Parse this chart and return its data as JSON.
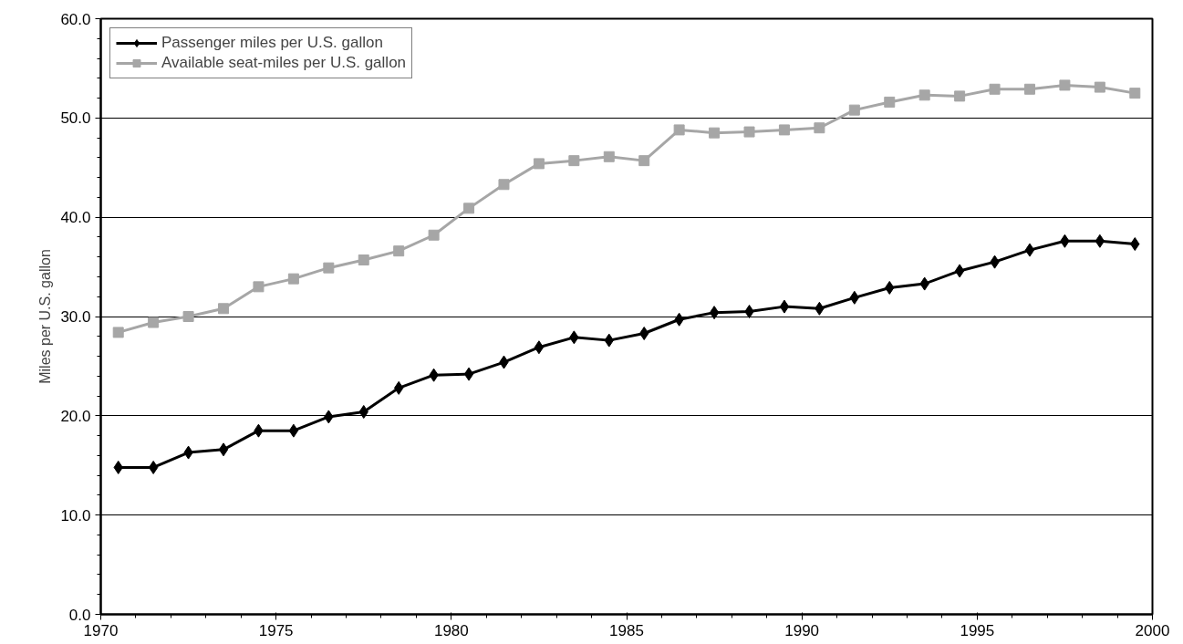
{
  "chart_data": {
    "type": "line",
    "ylabel": "Miles per U.S. gallon",
    "xlim": [
      1970,
      2000
    ],
    "xticks": [
      1970,
      1975,
      1980,
      1985,
      1990,
      1995,
      2000
    ],
    "ylim": [
      0,
      60
    ],
    "yticks": [
      {
        "value": 0,
        "label": "0.0"
      },
      {
        "value": 10,
        "label": "10.0"
      },
      {
        "value": 20,
        "label": "20.0"
      },
      {
        "value": 30,
        "label": "30.0"
      },
      {
        "value": 40,
        "label": "40.0"
      },
      {
        "value": 50,
        "label": "50.0"
      },
      {
        "value": 60,
        "label": "60.0"
      }
    ],
    "grid": "y",
    "legend": "top left",
    "line_style": "solid",
    "x": [
      1970.5,
      1971.5,
      1972.5,
      1973.5,
      1974.5,
      1975.5,
      1976.5,
      1977.5,
      1978.5,
      1979.5,
      1980.5,
      1981.5,
      1982.5,
      1983.5,
      1984.5,
      1985.5,
      1986.5,
      1987.5,
      1988.5,
      1989.5,
      1990.5,
      1991.5,
      1992.5,
      1993.5,
      1994.5,
      1995.5,
      1996.5,
      1997.5,
      1998.5,
      1999.5
    ],
    "series": [
      {
        "name": "Passenger miles per U.S. gallon",
        "color": "#000000",
        "marker": "diamond",
        "values": [
          14.8,
          14.8,
          16.3,
          16.6,
          18.5,
          18.5,
          19.9,
          20.4,
          22.8,
          24.1,
          24.2,
          25.4,
          26.9,
          27.9,
          27.6,
          28.3,
          29.7,
          30.4,
          30.5,
          31.0,
          30.8,
          31.9,
          32.9,
          33.3,
          34.6,
          35.5,
          36.7,
          37.6,
          37.6,
          37.3
        ]
      },
      {
        "name": "Available seat-miles per U.S. gallon",
        "color": "#a6a6a6",
        "marker": "square",
        "values": [
          28.4,
          29.4,
          30.0,
          30.8,
          33.0,
          33.8,
          34.9,
          35.7,
          36.6,
          38.2,
          40.9,
          43.3,
          45.4,
          45.7,
          46.1,
          45.7,
          48.8,
          48.5,
          48.6,
          48.8,
          49.0,
          50.8,
          51.6,
          52.3,
          52.2,
          52.9,
          52.9,
          53.3,
          53.1,
          52.5
        ]
      }
    ]
  }
}
